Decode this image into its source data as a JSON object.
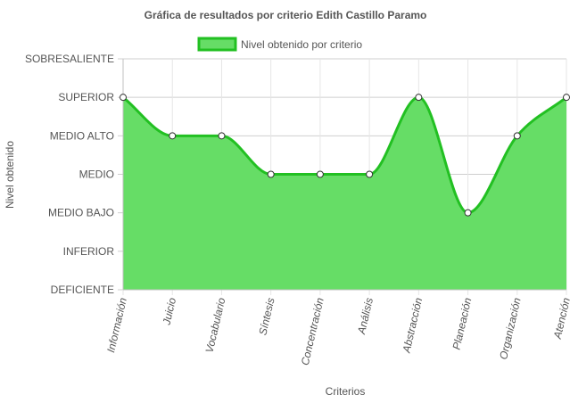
{
  "chart_data": {
    "type": "line",
    "title": "Gráfica de resultados por criterio Edith Castillo Paramo",
    "xlabel": "Criterios",
    "ylabel": "Nivel obtenido",
    "categories": [
      "Información",
      "Juicio",
      "Vocabulario",
      "Síntesis",
      "Concentración",
      "Análisis",
      "Abstracción",
      "Planeación",
      "Organización",
      "Atención"
    ],
    "y_levels": [
      "DEFICIENTE",
      "INFERIOR",
      "MEDIO BAJO",
      "MEDIO",
      "MEDIO ALTO",
      "SUPERIOR",
      "SOBRESALIENTE"
    ],
    "series": [
      {
        "name": "Nivel obtenido por criterio",
        "values": [
          5,
          4,
          4,
          3,
          3,
          3,
          5,
          2,
          4,
          5
        ],
        "fill_color": "#66dd66",
        "line_color": "#22c022"
      }
    ],
    "ylim": [
      0,
      6
    ],
    "grid": true,
    "legend_position": "top",
    "area_filled": true,
    "curve": "smooth"
  }
}
